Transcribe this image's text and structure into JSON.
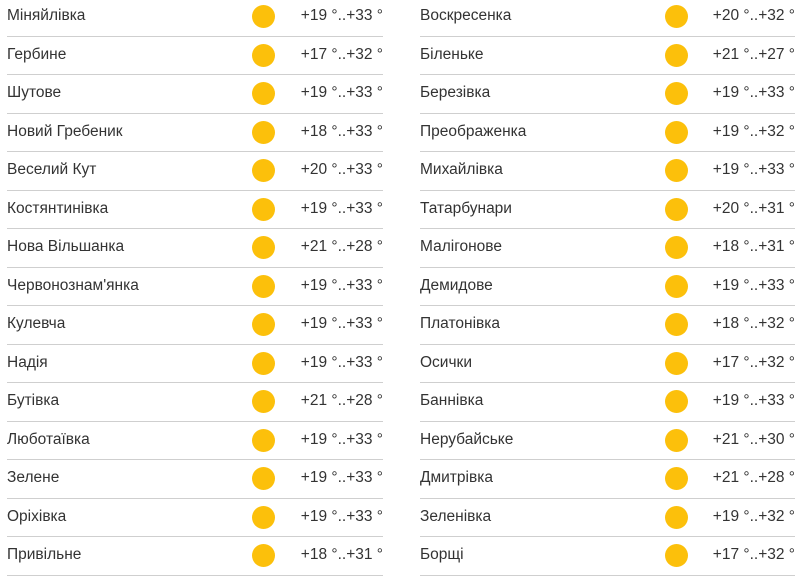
{
  "sun_color": "#fcc00b",
  "icon": "sun-icon",
  "left": [
    {
      "name": "Міняйлівка",
      "temp": "+19 °..+33 °"
    },
    {
      "name": "Гербине",
      "temp": "+17 °..+32 °"
    },
    {
      "name": "Шутове",
      "temp": "+19 °..+33 °"
    },
    {
      "name": "Новий Гребеник",
      "temp": "+18 °..+33 °"
    },
    {
      "name": "Веселий Кут",
      "temp": "+20 °..+33 °"
    },
    {
      "name": "Костянтинівка",
      "temp": "+19 °..+33 °"
    },
    {
      "name": "Нова Вільшанка",
      "temp": "+21 °..+28 °"
    },
    {
      "name": "Червонознам'янка",
      "temp": "+19 °..+33 °"
    },
    {
      "name": "Кулевча",
      "temp": "+19 °..+33 °"
    },
    {
      "name": "Надія",
      "temp": "+19 °..+33 °"
    },
    {
      "name": "Бутівка",
      "temp": "+21 °..+28 °"
    },
    {
      "name": "Люботаївка",
      "temp": "+19 °..+33 °"
    },
    {
      "name": "Зелене",
      "temp": "+19 °..+33 °"
    },
    {
      "name": "Оріхівка",
      "temp": "+19 °..+33 °"
    },
    {
      "name": "Привільне",
      "temp": "+18 °..+31 °"
    }
  ],
  "right": [
    {
      "name": "Воскресенка",
      "temp": "+20 °..+32 °"
    },
    {
      "name": "Біленьке",
      "temp": "+21 °..+27 °"
    },
    {
      "name": "Березівка",
      "temp": "+19 °..+33 °"
    },
    {
      "name": "Преображенка",
      "temp": "+19 °..+32 °"
    },
    {
      "name": "Михайлівка",
      "temp": "+19 °..+33 °"
    },
    {
      "name": "Татарбунари",
      "temp": "+20 °..+31 °"
    },
    {
      "name": "Малігонове",
      "temp": "+18 °..+31 °"
    },
    {
      "name": "Демидове",
      "temp": "+19 °..+33 °"
    },
    {
      "name": "Платонівка",
      "temp": "+18 °..+32 °"
    },
    {
      "name": "Осички",
      "temp": "+17 °..+32 °"
    },
    {
      "name": "Баннівка",
      "temp": "+19 °..+33 °"
    },
    {
      "name": "Нерубайське",
      "temp": "+21 °..+30 °"
    },
    {
      "name": "Дмитрівка",
      "temp": "+21 °..+28 °"
    },
    {
      "name": "Зеленівка",
      "temp": "+19 °..+32 °"
    },
    {
      "name": "Борщі",
      "temp": "+17 °..+32 °"
    }
  ]
}
